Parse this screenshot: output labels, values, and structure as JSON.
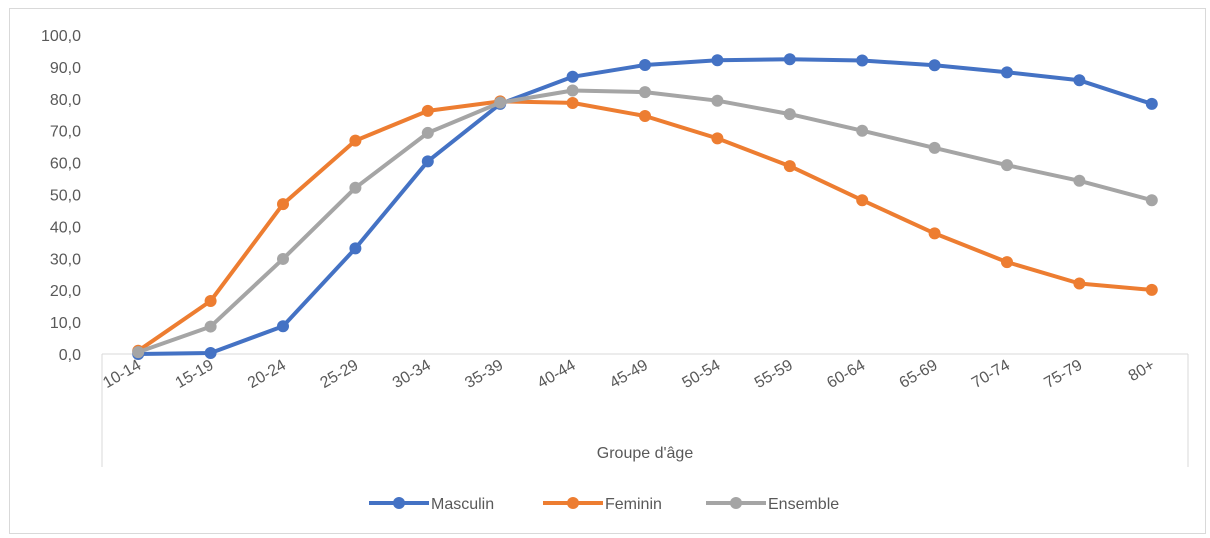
{
  "chart_data": {
    "type": "line",
    "title": "",
    "xlabel": "Groupe d'âge",
    "ylabel": "",
    "ylim": [
      0,
      100
    ],
    "y_ticks": [
      "0,0",
      "10,0",
      "20,0",
      "30,0",
      "40,0",
      "50,0",
      "60,0",
      "70,0",
      "80,0",
      "90,0",
      "100,0"
    ],
    "categories": [
      "10-14",
      "15-19",
      "20-24",
      "25-29",
      "30-34",
      "35-39",
      "40-44",
      "45-49",
      "50-54",
      "55-59",
      "60-64",
      "65-69",
      "70-74",
      "75-79",
      "80+"
    ],
    "grid": false,
    "legend_position": "bottom",
    "series": [
      {
        "name": "Masculin",
        "color": "#4472c4",
        "values": [
          0.0,
          0.3,
          8.7,
          33.1,
          60.4,
          78.4,
          86.9,
          90.6,
          92.1,
          92.4,
          92.0,
          90.5,
          88.3,
          85.8,
          78.4
        ]
      },
      {
        "name": "Feminin",
        "color": "#ed7d31",
        "values": [
          1.0,
          16.6,
          47.0,
          66.9,
          76.2,
          79.2,
          78.7,
          74.6,
          67.6,
          58.9,
          48.2,
          37.8,
          28.8,
          22.1,
          20.1
        ]
      },
      {
        "name": "Ensemble",
        "color": "#a5a5a5",
        "values": [
          0.6,
          8.6,
          29.8,
          52.1,
          69.3,
          78.8,
          82.6,
          82.1,
          79.4,
          75.2,
          70.0,
          64.6,
          59.2,
          54.3,
          48.2
        ]
      }
    ]
  }
}
